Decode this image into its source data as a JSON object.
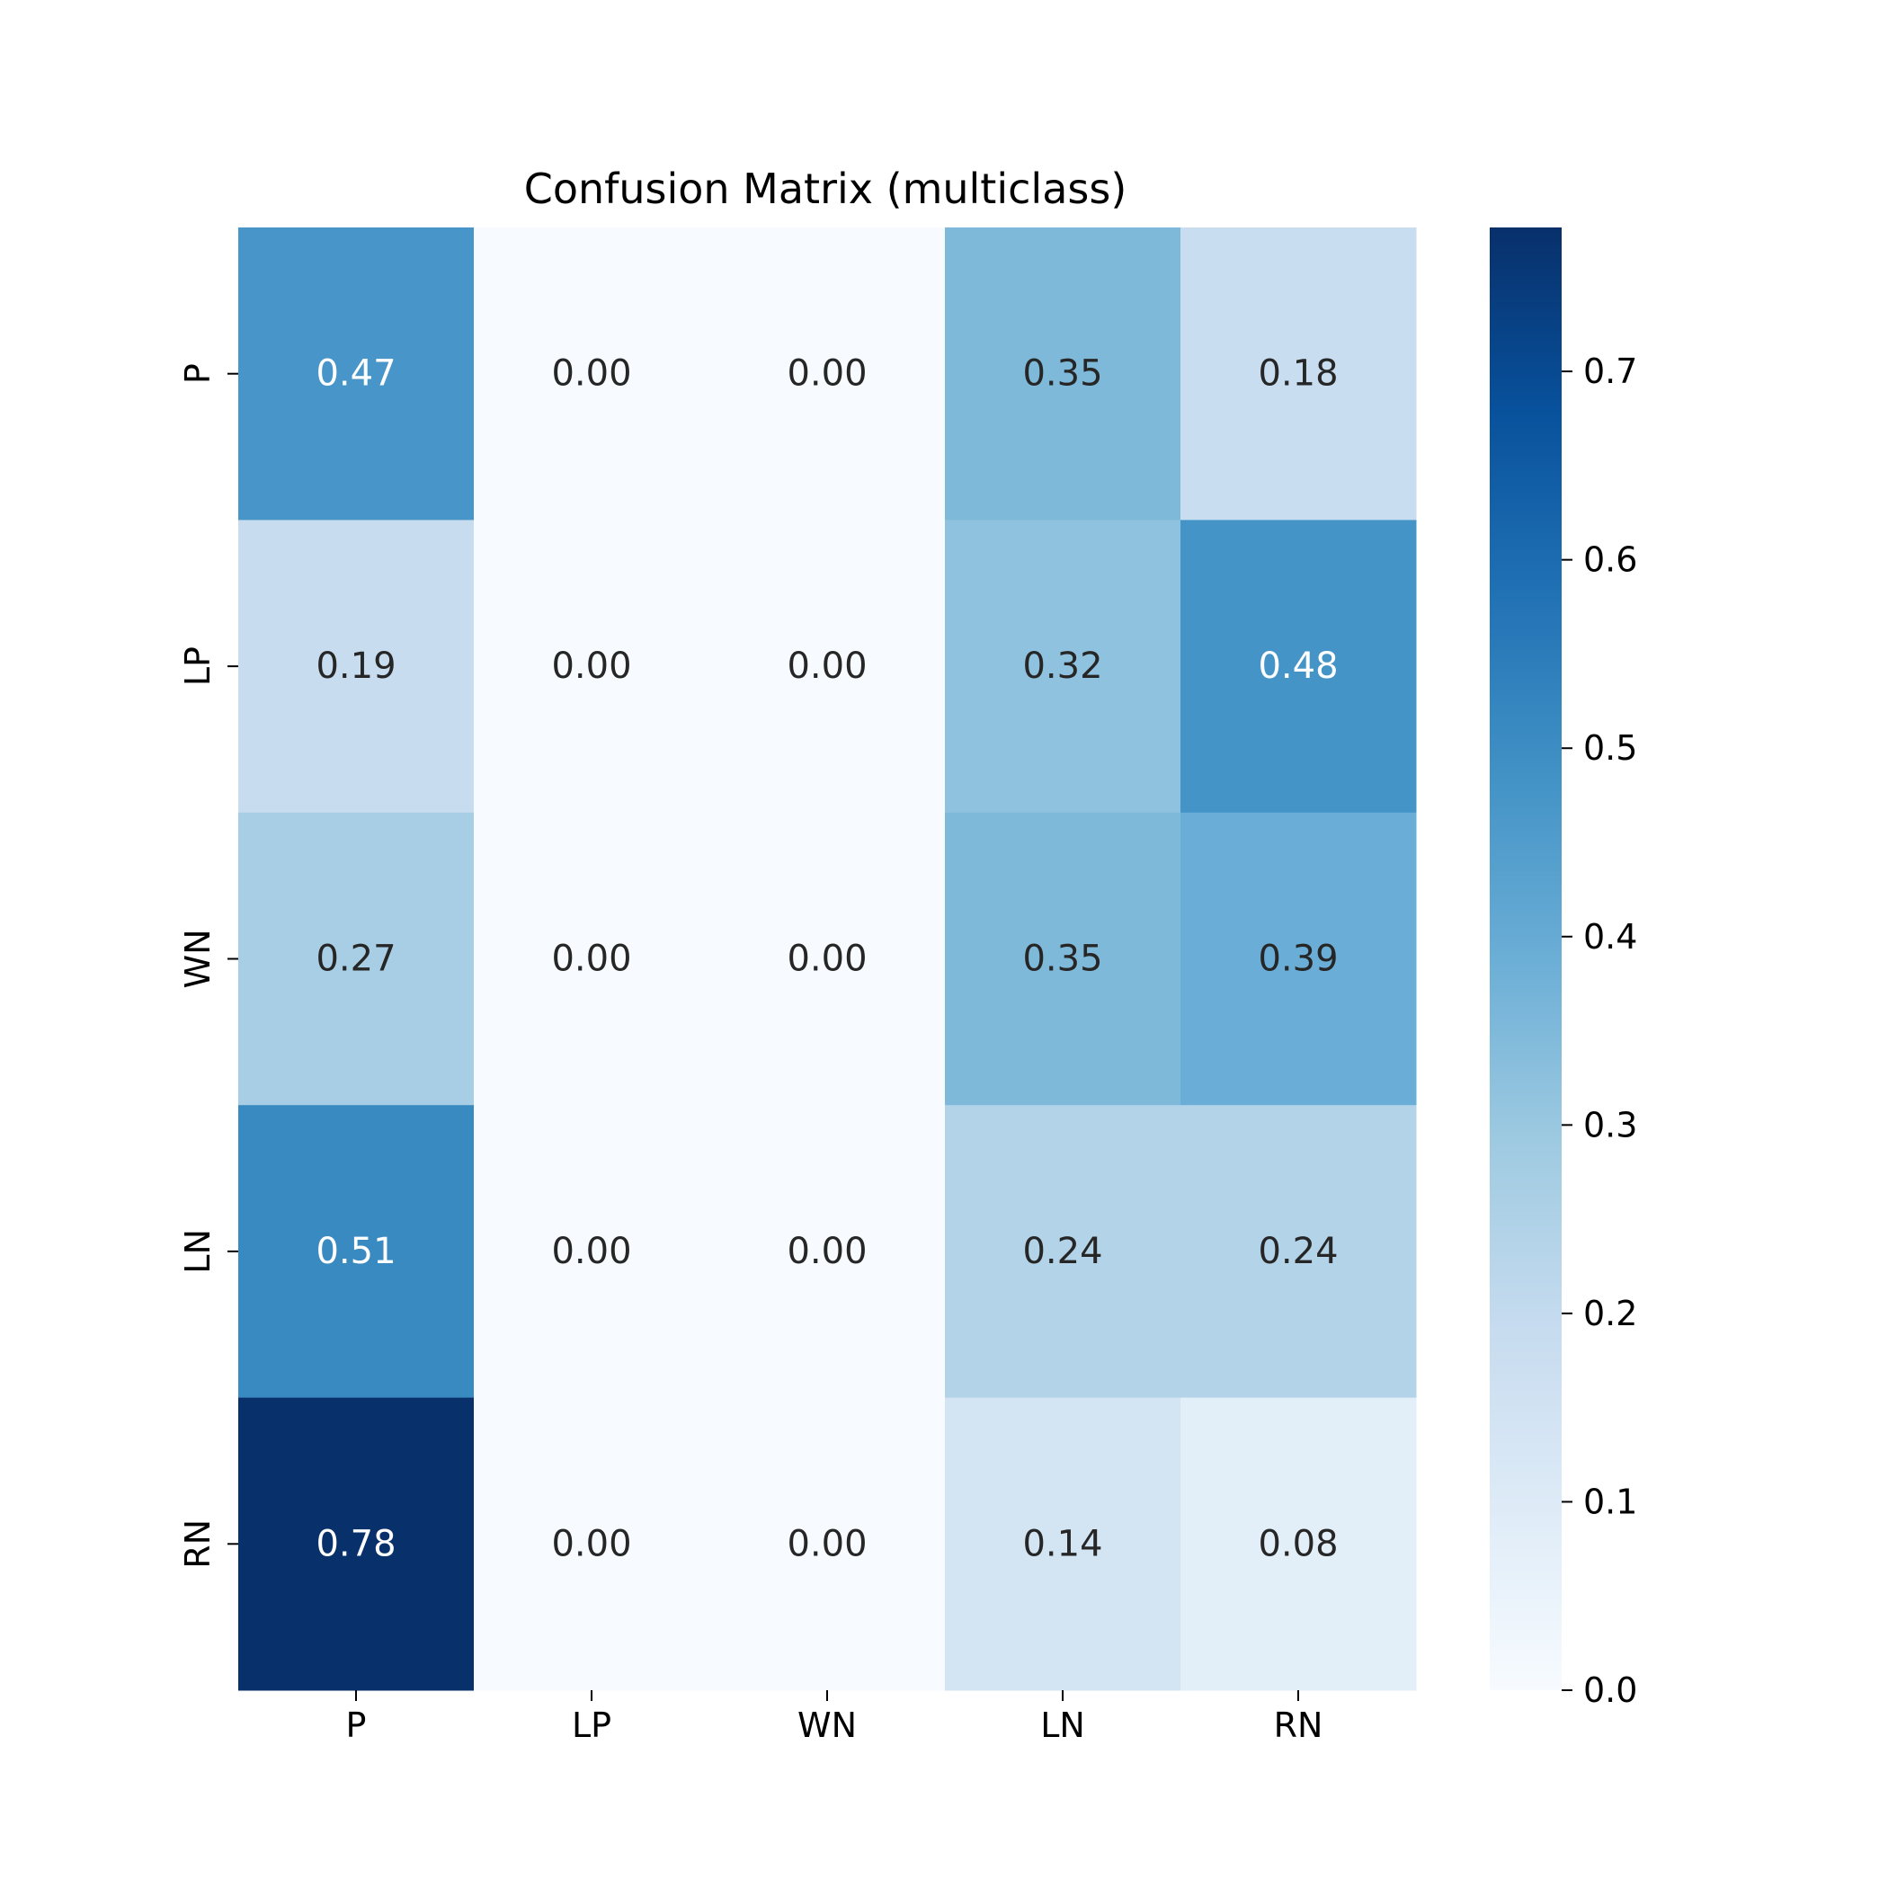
{
  "chart_data": {
    "type": "heatmap",
    "title": "Confusion Matrix (multiclass)",
    "xlabel": "",
    "ylabel": "",
    "x_categories": [
      "P",
      "LP",
      "WN",
      "LN",
      "RN"
    ],
    "y_categories": [
      "P",
      "LP",
      "WN",
      "LN",
      "RN"
    ],
    "values": [
      [
        0.47,
        0.0,
        0.0,
        0.35,
        0.18
      ],
      [
        0.19,
        0.0,
        0.0,
        0.32,
        0.48
      ],
      [
        0.27,
        0.0,
        0.0,
        0.35,
        0.39
      ],
      [
        0.51,
        0.0,
        0.0,
        0.24,
        0.24
      ],
      [
        0.78,
        0.0,
        0.0,
        0.14,
        0.08
      ]
    ],
    "value_format": "0.00",
    "colormap": "Blues",
    "colormap_stops": [
      "#f7fbff",
      "#deebf7",
      "#c6dbef",
      "#9ecae1",
      "#6baed6",
      "#4292c6",
      "#2171b5",
      "#08519c",
      "#08306b"
    ],
    "colorbar": {
      "vmin": 0.0,
      "vmax": 0.7764,
      "ticks": [
        "0.0",
        "0.1",
        "0.2",
        "0.3",
        "0.4",
        "0.5",
        "0.6",
        "0.7"
      ]
    },
    "grid": false,
    "legend": "none"
  }
}
